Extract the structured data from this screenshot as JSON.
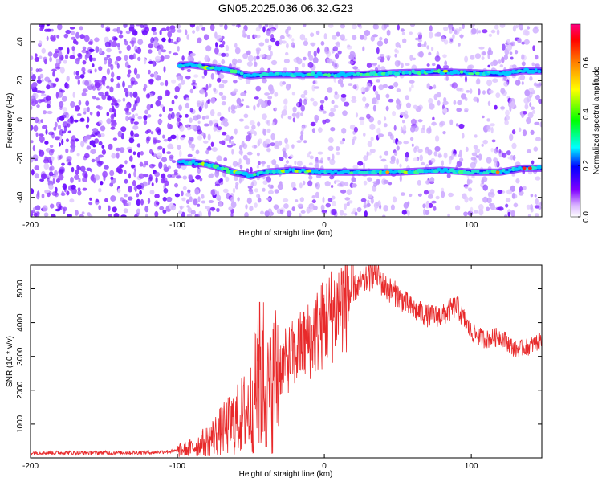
{
  "figure": {
    "title": "GN05.2025.036.06.32.G23"
  },
  "chart_data": [
    {
      "type": "heatmap",
      "title": "GN05.2025.036.06.32.G23",
      "xlabel": "Height of straight line (km)",
      "ylabel": "Frequency (Hz)",
      "xlim": [
        -200,
        148
      ],
      "ylim": [
        -50,
        49
      ],
      "xticks": [
        "-200",
        "-100",
        "0",
        "100"
      ],
      "xtick_values": [
        -200,
        -100,
        0,
        100
      ],
      "yticks": [
        "40",
        "20",
        "0",
        "-20",
        "-40"
      ],
      "ytick_values": [
        40,
        20,
        0,
        -20,
        -40
      ],
      "colorbar": {
        "label": "Normalized spectral amplitude",
        "ticks": [
          "0.0",
          "0.2",
          "0.4",
          "0.6"
        ],
        "tick_values": [
          0.0,
          0.2,
          0.4,
          0.6
        ],
        "range": [
          0,
          0.75
        ],
        "colormap": [
          "#ffffff",
          "#d9b3ff",
          "#8000ff",
          "#0000ff",
          "#00ffff",
          "#00ff00",
          "#ffff00",
          "#ff8000",
          "#ff0000",
          "#ff0080"
        ]
      },
      "series": [
        {
          "name": "upper band",
          "x": [
            -98,
            -90,
            -80,
            -70,
            -62,
            -55,
            -50,
            -40,
            -20,
            0,
            20,
            50,
            80,
            100,
            120,
            135,
            148
          ],
          "y": [
            28,
            28,
            27,
            26,
            25,
            23,
            22.5,
            23,
            23,
            23,
            23,
            24,
            24.5,
            24,
            23.5,
            25,
            25
          ]
        },
        {
          "name": "lower band",
          "x": [
            -98,
            -90,
            -80,
            -70,
            -62,
            -55,
            -50,
            -40,
            -20,
            0,
            20,
            50,
            80,
            100,
            120,
            135,
            148
          ],
          "y": [
            -22,
            -22,
            -23,
            -25,
            -27,
            -28,
            -29,
            -27,
            -26,
            -27,
            -27,
            -27,
            -26,
            -27,
            -27,
            -25,
            -25
          ]
        }
      ],
      "grid": false
    },
    {
      "type": "line",
      "xlabel": "Height of straight line (km)",
      "ylabel": "SNR (10 * v/v)",
      "xlim": [
        -200,
        148
      ],
      "ylim": [
        0,
        5700
      ],
      "xticks": [
        "-200",
        "-100",
        "0",
        "100"
      ],
      "xtick_values": [
        -200,
        -100,
        0,
        100
      ],
      "yticks": [
        "1000",
        "2000",
        "3000",
        "4000",
        "5000"
      ],
      "ytick_values": [
        1000,
        2000,
        3000,
        4000,
        5000
      ],
      "series": [
        {
          "color": "#e8292a",
          "x": [
            -200,
            -180,
            -160,
            -140,
            -120,
            -100,
            -90,
            -80,
            -70,
            -60,
            -50,
            -45,
            -40,
            -30,
            -20,
            -10,
            0,
            10,
            20,
            30,
            35,
            40,
            50,
            60,
            70,
            80,
            90,
            100,
            110,
            120,
            130,
            140,
            148
          ],
          "y": [
            150,
            150,
            150,
            150,
            160,
            200,
            300,
            500,
            800,
            1100,
            1500,
            2400,
            1800,
            2700,
            3100,
            3500,
            4000,
            4500,
            5000,
            5300,
            5500,
            5100,
            4800,
            4400,
            4200,
            4200,
            4500,
            3700,
            3500,
            3600,
            3200,
            3300,
            3500
          ]
        }
      ],
      "grid": false
    }
  ]
}
